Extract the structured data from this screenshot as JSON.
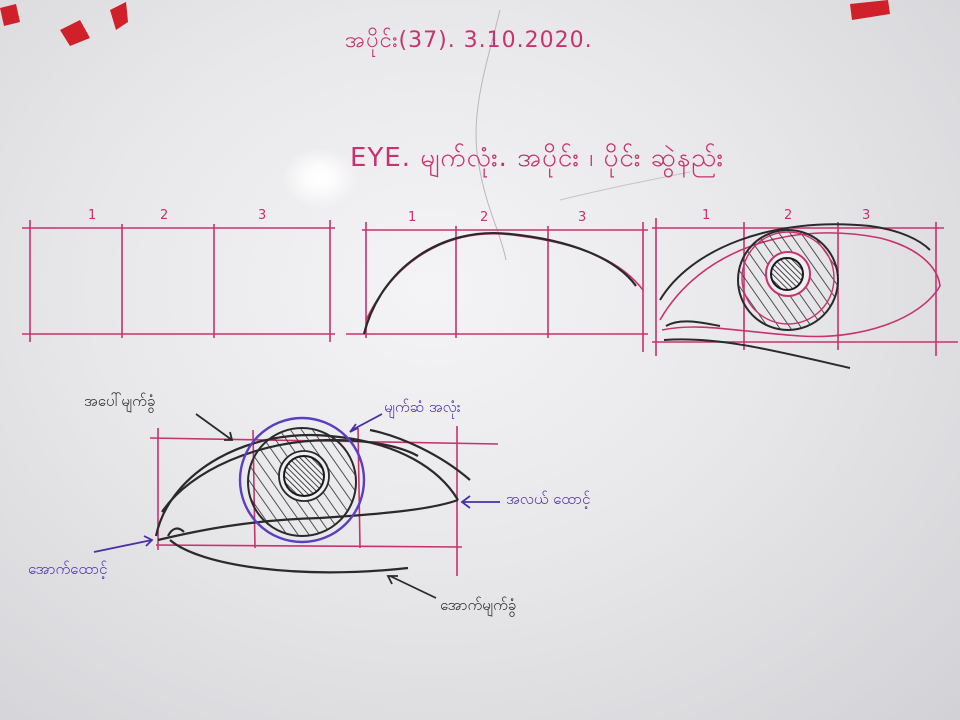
{
  "title": "အပိုင်း(37). 3.10.2020.",
  "subtitle": "EYE. မျက်လုံး. အပိုင်း ၊ ပိုင်း ဆွဲနည်း",
  "column_numbers": [
    "1",
    "2",
    "3"
  ],
  "labels": {
    "upper_eyelid": "အပေါ်မျက်ခွံ",
    "eyeball": "မျက်ဆံ အလုံး",
    "outer_corner": "အလယ် ထောင့်",
    "inner_corner": "အောက်ထောင့်",
    "lower_eyelid": "အောက်မျက်ခွံ"
  },
  "colors": {
    "marker_pink": "#c8326e",
    "marker_violet": "#4a2fa8",
    "marker_black": "#2a2a2a",
    "tape_red": "#d0202a"
  }
}
